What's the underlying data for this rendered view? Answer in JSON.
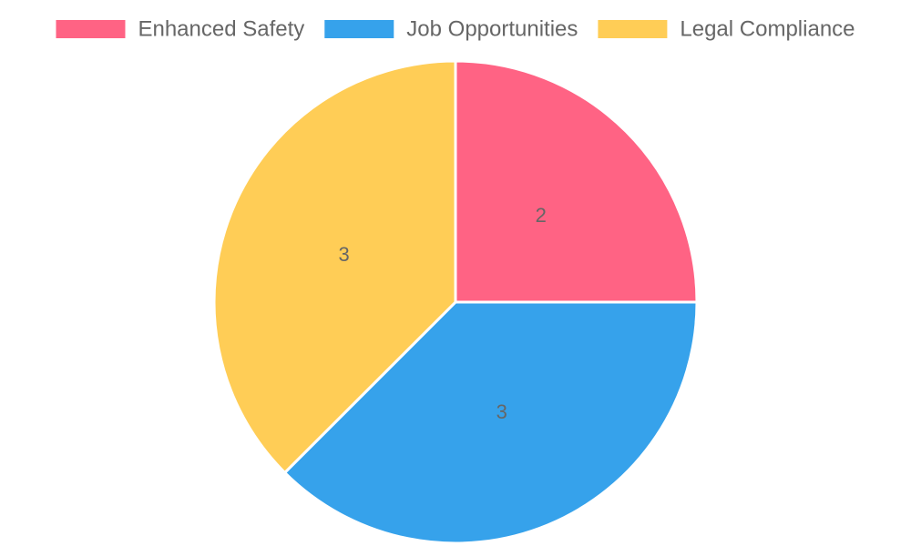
{
  "chart_data": {
    "type": "pie",
    "categories": [
      "Enhanced Safety",
      "Job Opportunities",
      "Legal Compliance"
    ],
    "values": [
      2,
      3,
      3
    ],
    "colors": [
      "#ff6384",
      "#36a2eb",
      "#ffcd56"
    ],
    "legend": "top"
  }
}
